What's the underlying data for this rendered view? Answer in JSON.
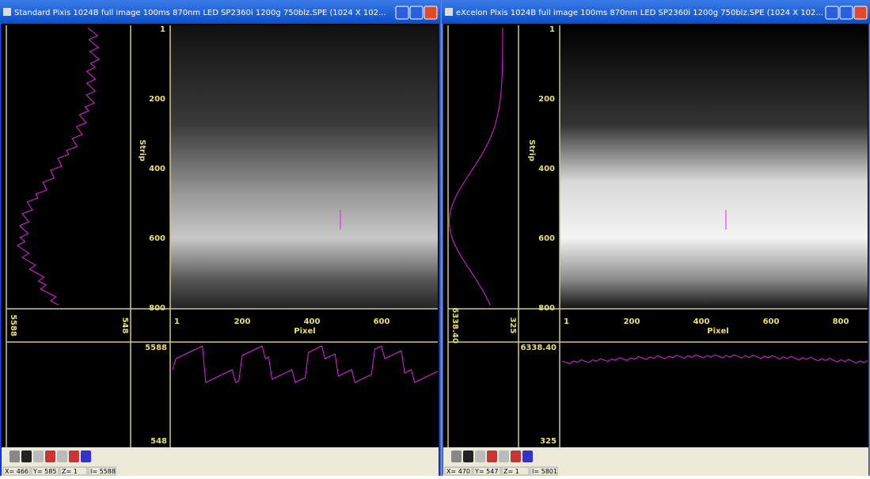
{
  "windows": [
    {
      "title": "Standard Pixis 1024B full image 100ms 870nm LED SP2360i 1200g 750blz.SPE (1024 X 102...",
      "y_axis": {
        "label": "Strip",
        "ticks": [
          "1",
          "200",
          "400",
          "600",
          "800"
        ]
      },
      "x_axis": {
        "label": "Pixel",
        "ticks": [
          "1",
          "200",
          "400",
          "600"
        ]
      },
      "profile_labels": {
        "max": "5588",
        "min": "548"
      },
      "status": [
        "X= 466",
        "Y= 585",
        "Z= 1",
        "I= 5588"
      ]
    },
    {
      "title": "eXcelon Pixis 1024B full image 100ms 870nm LED SP2360i 1200g 750blz.SPE (1024 X 102...",
      "y_axis": {
        "label": "Strip",
        "ticks": [
          "1",
          "200",
          "400",
          "600",
          "800"
        ]
      },
      "x_axis": {
        "label": "Pixel",
        "ticks": [
          "1",
          "200",
          "400",
          "600",
          "800"
        ]
      },
      "profile_labels": {
        "max": "6338.40",
        "min": "325"
      },
      "status": [
        "X= 470",
        "Y= 547",
        "Z= 1",
        "I= 5801"
      ]
    }
  ]
}
